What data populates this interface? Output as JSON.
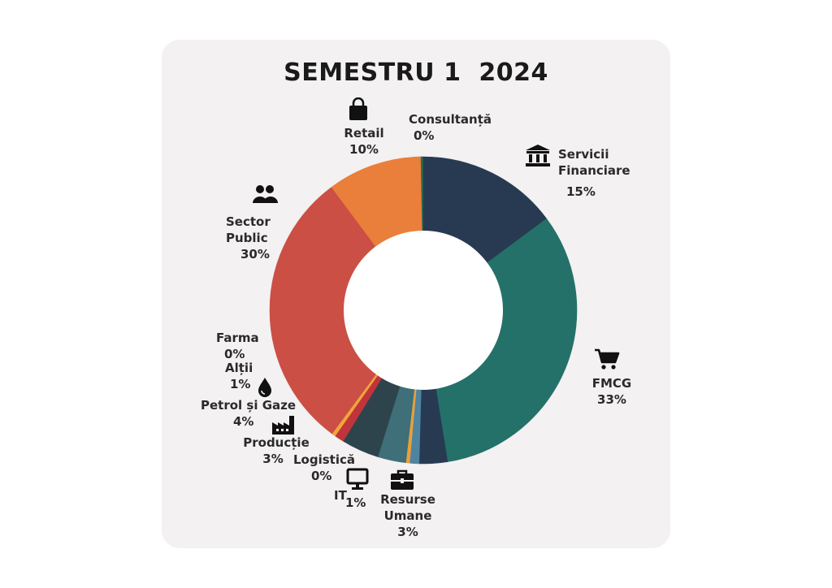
{
  "chart_data": {
    "type": "pie",
    "title": "SEMESTRU 1  2024",
    "donut": true,
    "slices": [
      {
        "label": "Consultanță",
        "value": 0.3,
        "pct_label": "0%",
        "color": "#2c6b4f"
      },
      {
        "label": "Servicii Financiare",
        "value": 15,
        "pct_label": "15%",
        "color": "#283a52"
      },
      {
        "label": "FMCG",
        "value": 33,
        "pct_label": "33%",
        "color": "#247169"
      },
      {
        "label": "Resurse Umane",
        "value": 3,
        "pct_label": "3%",
        "color": "#283a52"
      },
      {
        "label": "IT",
        "value": 1,
        "pct_label": "1%",
        "color": "#4f84a0"
      },
      {
        "label": "Logistică",
        "value": 0.4,
        "pct_label": "0%",
        "color": "#e9a03b"
      },
      {
        "label": "Producție",
        "value": 3,
        "pct_label": "3%",
        "color": "#3f6f79"
      },
      {
        "label": "Petrol și Gaze",
        "value": 4,
        "pct_label": "4%",
        "color": "#2e444d"
      },
      {
        "label": "Alții",
        "value": 1,
        "pct_label": "1%",
        "color": "#c1343b"
      },
      {
        "label": "Farma",
        "value": 0.4,
        "pct_label": "0%",
        "color": "#f0a43a"
      },
      {
        "label": "Sector Public",
        "value": 30,
        "pct_label": "30%",
        "color": "#cb4f45"
      },
      {
        "label": "Retail",
        "value": 10,
        "pct_label": "10%",
        "color": "#e97f3a"
      }
    ]
  },
  "labels": {
    "consultanta": {
      "name": "Consultanță",
      "pct": "0%"
    },
    "servicii": {
      "name1": "Servicii",
      "name2": "Financiare",
      "pct": "15%"
    },
    "fmcg": {
      "name": "FMCG",
      "pct": "33%"
    },
    "resurse": {
      "name1": "Resurse",
      "name2": "Umane",
      "pct": "3%"
    },
    "it": {
      "name": "IT",
      "pct": "1%"
    },
    "logistica": {
      "name": "Logistică",
      "pct": "0%"
    },
    "productie": {
      "name": "Producție",
      "pct": "3%"
    },
    "petrol": {
      "name": "Petrol și Gaze",
      "pct": "4%"
    },
    "altii": {
      "name": "Alții",
      "pct": "1%"
    },
    "farma": {
      "name": "Farma",
      "pct": "0%"
    },
    "sector": {
      "name1": "Sector",
      "name2": "Public",
      "pct": "30%"
    },
    "retail": {
      "name": "Retail",
      "pct": "10%"
    }
  },
  "icons": [
    "shopping-bag-icon",
    "bank-icon",
    "cart-icon",
    "briefcase-icon",
    "monitor-icon",
    "factory-icon",
    "oil-drop-icon",
    "users-icon"
  ]
}
